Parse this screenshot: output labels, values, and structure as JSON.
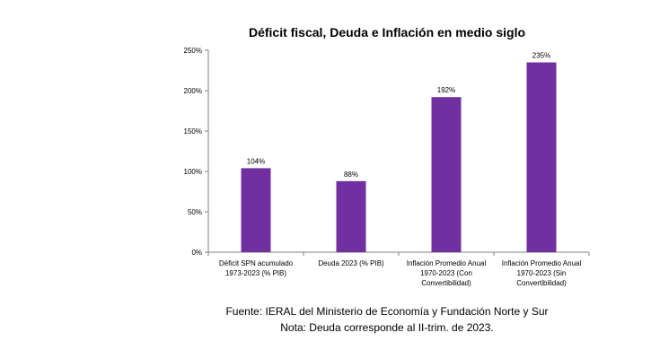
{
  "chart_data": {
    "type": "bar",
    "title": "Déficit fiscal, Deuda e Inflación en medio siglo",
    "categories": [
      [
        "Déficit SPN acumulado",
        "1973-2023 (% PIB)"
      ],
      [
        "Deuda 2023 (% PIB)"
      ],
      [
        "Inflación Promedio Anual",
        "1970-2023 (Con",
        "Convertibilidad)"
      ],
      [
        "Inflación Promedio Anual",
        "1970-2023 (Sin",
        "Convertibilidad)"
      ]
    ],
    "values": [
      104,
      88,
      192,
      235
    ],
    "data_labels": [
      "104%",
      "88%",
      "192%",
      "235%"
    ],
    "ylim": [
      0,
      250
    ],
    "yticks": [
      0,
      50,
      100,
      150,
      200,
      250
    ],
    "ytick_labels": [
      "0%",
      "50%",
      "100%",
      "150%",
      "200%",
      "250%"
    ],
    "xlabel": "",
    "ylabel": "",
    "grid": false,
    "bar_color": "#7030a0"
  },
  "footer": {
    "source": "Fuente: IERAL del Ministerio de Economía y Fundación Norte y Sur",
    "note": "Nota: Deuda corresponde al II-trim. de 2023."
  }
}
